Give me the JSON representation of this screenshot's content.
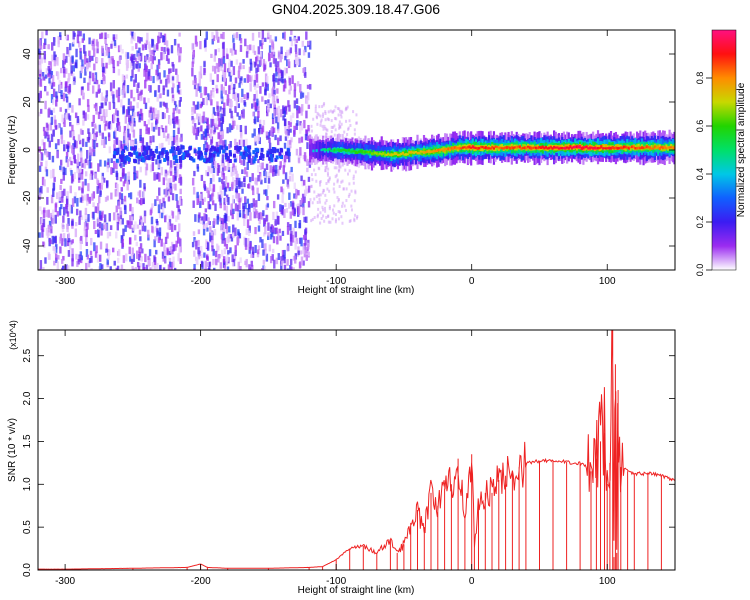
{
  "title": "GN04.2025.309.18.47.G06",
  "chart_data": [
    {
      "type": "heatmap",
      "xlabel": "Height of straight line (km)",
      "ylabel": "Frequency (Hz)",
      "xlim": [
        -320,
        150
      ],
      "ylim": [
        -50,
        50
      ],
      "x_ticks": [
        -300,
        -200,
        -100,
        0,
        100
      ],
      "y_ticks": [
        -40,
        -20,
        0,
        20,
        40
      ],
      "colorbar": {
        "label": "Normalized spectral amplitude",
        "range": [
          0,
          1
        ],
        "ticks": [
          "0.0",
          "0.2",
          "0.4",
          "0.6",
          "0.8"
        ],
        "tick_values": [
          0.0,
          0.2,
          0.4,
          0.6,
          0.8
        ],
        "colors": [
          "#ffffff",
          "#9b2cf0",
          "#3b1cf2",
          "#1060ff",
          "#00c8e6",
          "#00e068",
          "#22d400",
          "#c8d800",
          "#ff8c00",
          "#ff1010",
          "#ff1080"
        ]
      },
      "signal_ridge": {
        "x": [
          -120,
          -100,
          -80,
          -60,
          -40,
          -20,
          -10,
          0,
          20,
          40,
          60,
          80,
          100,
          120,
          150
        ],
        "freq": [
          0,
          0,
          -1,
          -2,
          -1,
          0,
          1,
          1,
          1,
          1,
          1,
          1,
          1,
          1,
          1
        ],
        "amplitude": [
          0.35,
          0.55,
          0.6,
          0.7,
          0.75,
          0.8,
          0.85,
          0.9,
          0.85,
          0.85,
          0.9,
          0.95,
          0.9,
          0.85,
          0.8
        ]
      },
      "noise_region_x": [
        -320,
        -120
      ]
    },
    {
      "type": "line",
      "xlabel": "Height of straight line (km)",
      "ylabel": "SNR (10 * v/v)",
      "scale_label": "(x10^4)",
      "xlim": [
        -320,
        150
      ],
      "ylim": [
        0,
        2.8
      ],
      "x_ticks": [
        -300,
        -200,
        -100,
        0,
        100
      ],
      "y_ticks": [
        "0.0",
        "0.5",
        "1.0",
        "1.5",
        "2.0",
        "2.5"
      ],
      "y_tick_values": [
        0.0,
        0.5,
        1.0,
        1.5,
        2.0,
        2.5
      ],
      "line_color": "#ee2222",
      "series": [
        {
          "x": [
            -320,
            -300,
            -250,
            -210,
            -200,
            -195,
            -180,
            -150,
            -120,
            -110,
            -100,
            -90,
            -80,
            -70,
            -60,
            -55,
            -50,
            -45,
            -40,
            -35,
            -30,
            -25,
            -20,
            -15,
            -10,
            -5,
            0,
            2,
            5,
            10,
            15,
            20,
            25,
            30,
            35,
            40,
            50,
            60,
            70,
            80,
            88,
            92,
            95,
            98,
            100,
            102,
            104,
            105,
            106,
            107,
            108,
            110,
            115,
            120,
            130,
            140,
            150
          ],
          "y": [
            0.01,
            0.01,
            0.02,
            0.03,
            0.07,
            0.03,
            0.02,
            0.02,
            0.03,
            0.04,
            0.12,
            0.25,
            0.28,
            0.2,
            0.35,
            0.2,
            0.3,
            0.55,
            0.7,
            0.5,
            0.9,
            0.75,
            0.95,
            1.0,
            1.3,
            0.6,
            1.35,
            0.3,
            0.75,
            0.9,
            0.9,
            1.05,
            1.1,
            1.15,
            1.2,
            1.25,
            1.27,
            1.27,
            1.26,
            1.25,
            1.15,
            1.3,
            1.5,
            1.6,
            1.0,
            1.25,
            2.8,
            0.15,
            2.4,
            0.2,
            2.1,
            1.2,
            1.15,
            1.12,
            1.13,
            1.1,
            1.05
          ]
        }
      ]
    }
  ]
}
